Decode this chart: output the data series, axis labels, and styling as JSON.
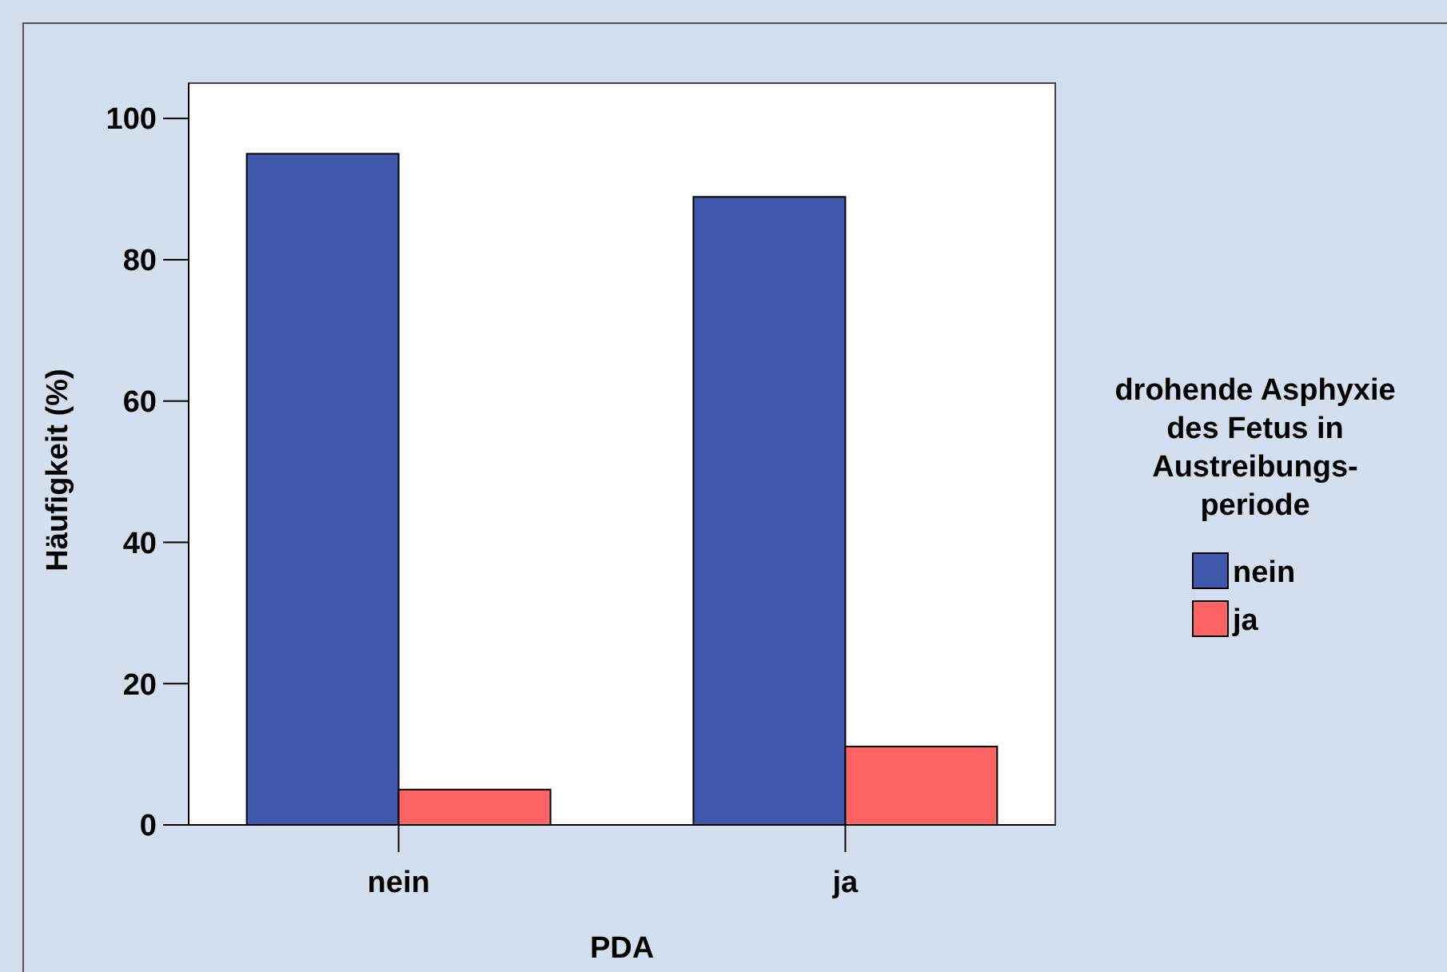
{
  "chart_data": {
    "type": "bar",
    "xlabel": "PDA",
    "ylabel": "Häufigkeit (%)",
    "legend_title": "drohende Asphyxie des Fetus in Austreibungs-periode",
    "categories": [
      "nein",
      "ja"
    ],
    "series": [
      {
        "name": "nein",
        "color": "#3e58ac",
        "values": [
          95,
          88.9
        ]
      },
      {
        "name": "ja",
        "color": "#fe6363",
        "values": [
          5,
          11.1
        ]
      }
    ],
    "ylim": [
      0,
      105
    ],
    "yticks": [
      0,
      20,
      40,
      60,
      80,
      100
    ],
    "grid": false,
    "legend": "right"
  }
}
